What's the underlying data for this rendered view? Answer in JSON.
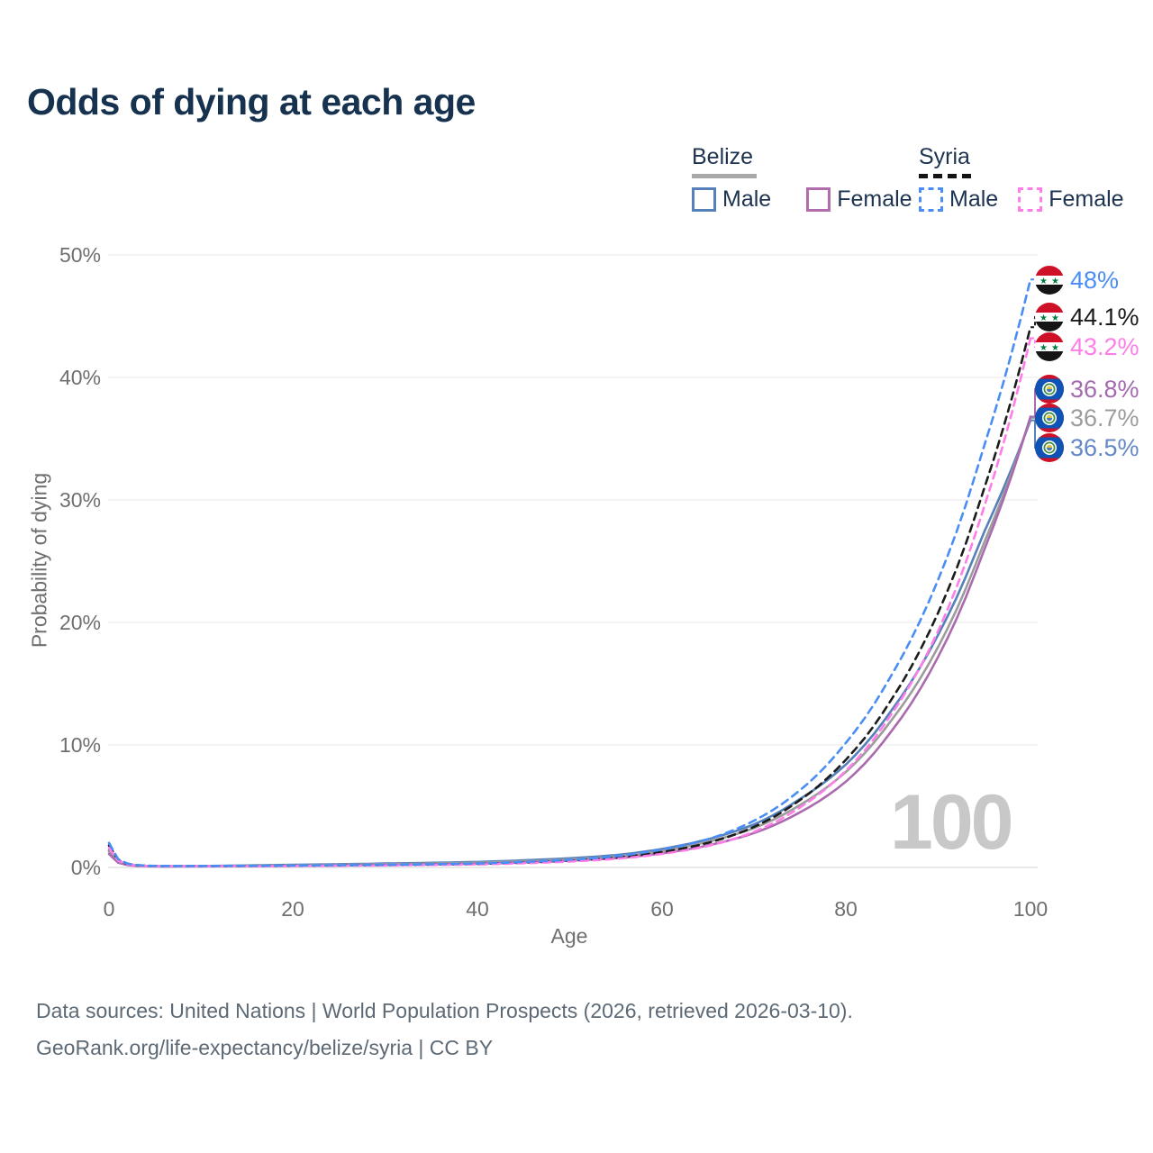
{
  "title": "Odds of dying at each age",
  "legend": {
    "belize": {
      "label": "Belize",
      "male": "Male",
      "female": "Female"
    },
    "syria": {
      "label": "Syria",
      "male": "Male",
      "female": "Female"
    }
  },
  "axes": {
    "y_label": "Probability of dying",
    "x_label": "Age",
    "y_ticks": [
      "0%",
      "10%",
      "20%",
      "30%",
      "40%",
      "50%"
    ],
    "x_ticks": [
      "0",
      "20",
      "40",
      "60",
      "80",
      "100"
    ]
  },
  "watermark": "100",
  "end_labels": [
    {
      "text": "48%",
      "series": "syria_male",
      "flag": "syria",
      "color": "#4a8ef5"
    },
    {
      "text": "44.1%",
      "series": "syria_total",
      "flag": "syria",
      "color": "#1a1a1a"
    },
    {
      "text": "43.2%",
      "series": "syria_female",
      "flag": "syria",
      "color": "#ff7de9"
    },
    {
      "text": "36.8%",
      "series": "belize_female",
      "flag": "belize",
      "color": "#a46ab0"
    },
    {
      "text": "36.7%",
      "series": "belize_total",
      "flag": "belize",
      "color": "#9c9c9c"
    },
    {
      "text": "36.5%",
      "series": "belize_male",
      "flag": "belize",
      "color": "#6488c6"
    }
  ],
  "footer": {
    "line1": "Data sources: United Nations | World Population Prospects (2026, retrieved 2026-03-10).",
    "line2": "GeoRank.org/life-expectancy/belize/syria | CC BY"
  },
  "chart_data": {
    "type": "line",
    "title": "Odds of dying at each age",
    "xlabel": "Age",
    "ylabel": "Probability of dying",
    "x_range": [
      0,
      100
    ],
    "y_range_percent": [
      0,
      50
    ],
    "grid": "horizontal",
    "legend_position": "top-right",
    "anchor_ages": [
      0,
      1,
      5,
      10,
      20,
      30,
      40,
      50,
      55,
      60,
      65,
      70,
      75,
      80,
      85,
      90,
      95,
      100
    ],
    "series": [
      {
        "key": "belize_male",
        "name": "Belize Male",
        "color": "#5580ba",
        "dashed": false,
        "values_percent": [
          1.4,
          0.2,
          0.1,
          0.12,
          0.22,
          0.32,
          0.45,
          0.75,
          1.0,
          1.5,
          2.3,
          3.5,
          5.6,
          8.4,
          12.9,
          19.0,
          27.5,
          36.5
        ]
      },
      {
        "key": "belize_total",
        "name": "Belize Total",
        "color": "#9c9c9c",
        "dashed": false,
        "values_percent": [
          1.3,
          0.18,
          0.09,
          0.1,
          0.18,
          0.26,
          0.38,
          0.65,
          0.9,
          1.35,
          2.1,
          3.2,
          5.1,
          7.8,
          12.1,
          18.0,
          26.6,
          36.7
        ]
      },
      {
        "key": "belize_female",
        "name": "Belize Female",
        "color": "#aa6aae",
        "dashed": false,
        "values_percent": [
          1.1,
          0.16,
          0.08,
          0.09,
          0.13,
          0.2,
          0.3,
          0.55,
          0.75,
          1.15,
          1.8,
          2.8,
          4.5,
          7.0,
          11.2,
          17.2,
          26.0,
          36.8
        ]
      },
      {
        "key": "syria_total",
        "name": "Syria Total",
        "color": "#1c1c1c",
        "dashed": true,
        "values_percent": [
          1.8,
          0.22,
          0.11,
          0.11,
          0.14,
          0.19,
          0.28,
          0.55,
          0.8,
          1.25,
          2.0,
          3.3,
          5.5,
          8.8,
          13.8,
          20.8,
          31.0,
          44.1
        ]
      },
      {
        "key": "syria_female",
        "name": "Syria Female",
        "color": "#ff7de9",
        "dashed": true,
        "values_percent": [
          1.6,
          0.2,
          0.1,
          0.1,
          0.12,
          0.17,
          0.25,
          0.48,
          0.7,
          1.1,
          1.75,
          2.9,
          4.9,
          7.9,
          12.6,
          19.3,
          29.5,
          43.2
        ]
      },
      {
        "key": "syria_male",
        "name": "Syria Male",
        "color": "#4a8ef5",
        "dashed": true,
        "values_percent": [
          2.0,
          0.25,
          0.12,
          0.12,
          0.16,
          0.22,
          0.32,
          0.62,
          0.92,
          1.45,
          2.3,
          3.8,
          6.3,
          10.2,
          15.8,
          23.5,
          34.5,
          48.0
        ]
      }
    ],
    "end_values_percent": {
      "syria_male": 48.0,
      "syria_total": 44.1,
      "syria_female": 43.2,
      "belize_female": 36.8,
      "belize_total": 36.7,
      "belize_male": 36.5
    }
  }
}
